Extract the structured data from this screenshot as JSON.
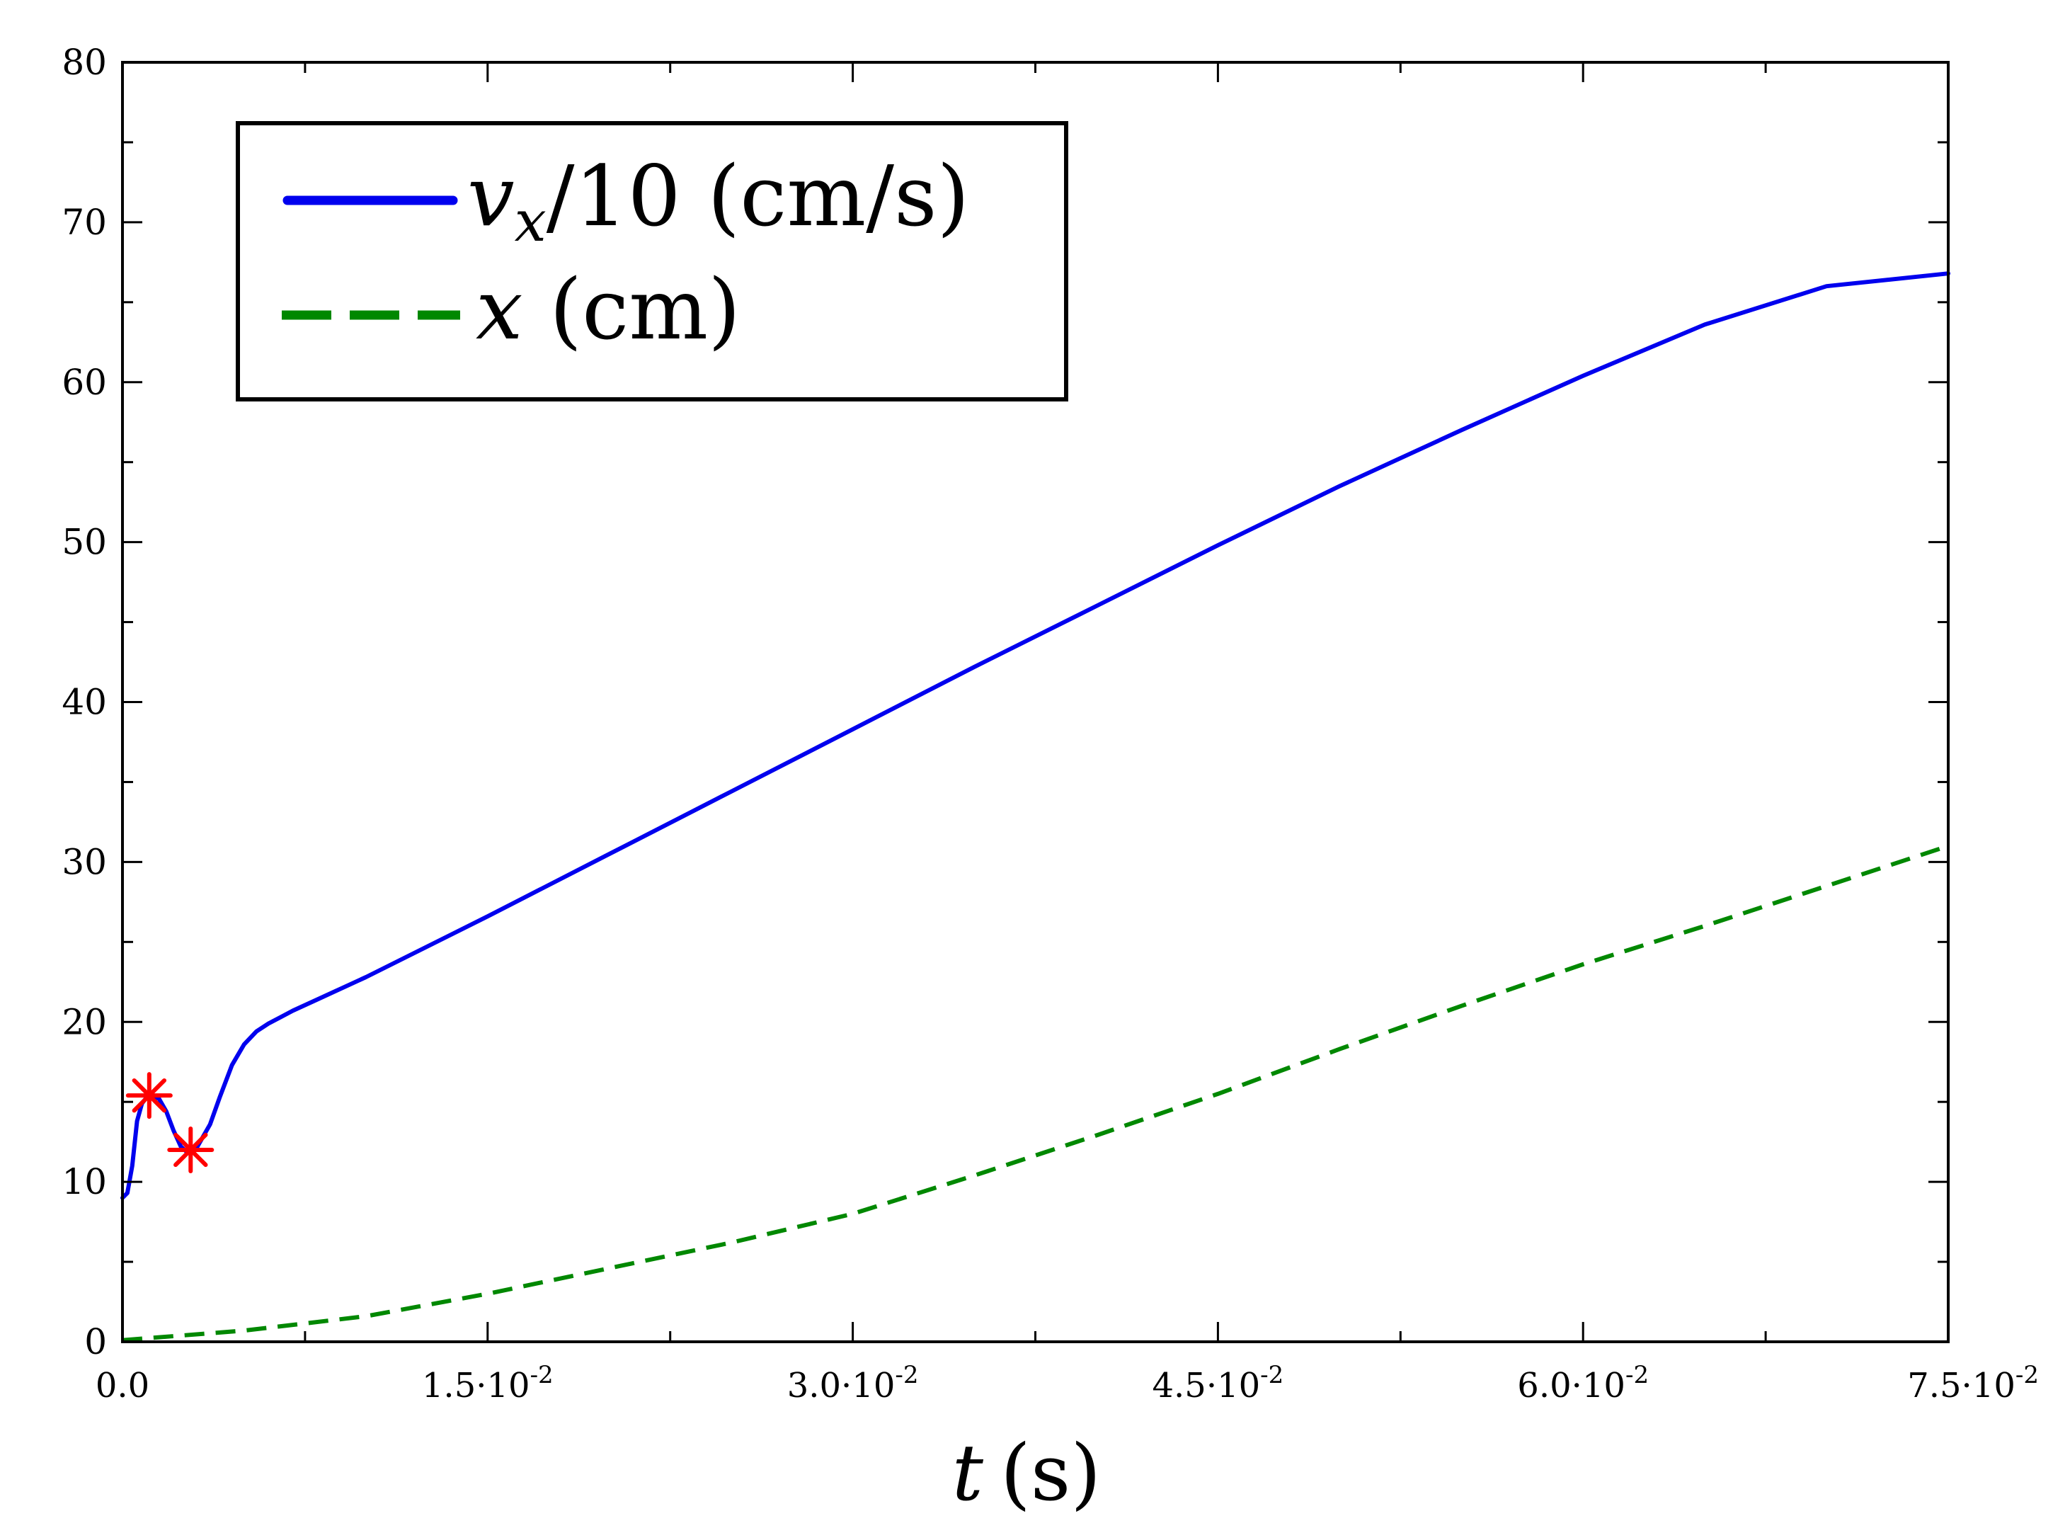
{
  "chart_data": {
    "type": "line",
    "title": "",
    "xlabel": "t (s)",
    "xlabel_var": "t",
    "xlabel_unit": "(s)",
    "ylabel": "",
    "xlim": [
      0,
      0.075
    ],
    "ylim": [
      0,
      80
    ],
    "x_ticks": [
      {
        "value": 0.0,
        "mant": "0.0",
        "exp": ""
      },
      {
        "value": 0.015,
        "mant": "1.5",
        "exp": "-2"
      },
      {
        "value": 0.03,
        "mant": "3.0",
        "exp": "-2"
      },
      {
        "value": 0.045,
        "mant": "4.5",
        "exp": "-2"
      },
      {
        "value": 0.06,
        "mant": "6.0",
        "exp": "-2"
      },
      {
        "value": 0.075,
        "mant": "7.5",
        "exp": "-2"
      }
    ],
    "x_minor_ticks": [
      0.0075,
      0.0225,
      0.0375,
      0.0525,
      0.0675
    ],
    "y_ticks": [
      0,
      10,
      20,
      30,
      40,
      50,
      60,
      70,
      80
    ],
    "y_minor_ticks": [
      5,
      15,
      25,
      35,
      45,
      55,
      65,
      75
    ],
    "grid": false,
    "legend_position": "top-left",
    "series": [
      {
        "name": "v_x/10 (cm/s)",
        "legend_var": "v",
        "legend_sub": "x",
        "legend_rest": "/10 (cm/s)",
        "style": "solid",
        "color": "#0000ee",
        "x": [
          0.0,
          0.0002,
          0.0004,
          0.0006,
          0.0008,
          0.001,
          0.0012,
          0.0015,
          0.0018,
          0.0021,
          0.0024,
          0.0027,
          0.003,
          0.0033,
          0.0036,
          0.004,
          0.0045,
          0.005,
          0.0055,
          0.006,
          0.0065,
          0.007,
          0.008,
          0.009,
          0.01,
          0.015,
          0.02,
          0.025,
          0.03,
          0.035,
          0.04,
          0.045,
          0.05,
          0.055,
          0.06,
          0.065,
          0.07,
          0.075
        ],
        "y": [
          9.0,
          9.3,
          11.0,
          13.8,
          14.9,
          15.3,
          15.4,
          15.2,
          14.4,
          13.2,
          12.2,
          11.8,
          12.0,
          12.8,
          13.6,
          15.3,
          17.3,
          18.6,
          19.4,
          19.9,
          20.3,
          20.7,
          21.4,
          22.1,
          22.8,
          26.6,
          30.5,
          34.4,
          38.3,
          42.2,
          46.0,
          49.8,
          53.5,
          57.0,
          60.4,
          63.6,
          66.0,
          66.8
        ]
      },
      {
        "name": "x (cm)",
        "legend_var": "x",
        "legend_sub": "",
        "legend_rest": " (cm)",
        "style": "dashed",
        "color": "#008800",
        "x": [
          0.0,
          0.005,
          0.01,
          0.015,
          0.02,
          0.025,
          0.03,
          0.035,
          0.04,
          0.045,
          0.05,
          0.055,
          0.06,
          0.065,
          0.07,
          0.075
        ],
        "y": [
          0.1,
          0.7,
          1.6,
          3.0,
          4.6,
          6.2,
          8.0,
          10.4,
          12.9,
          15.5,
          18.3,
          21.0,
          23.6,
          26.0,
          28.5,
          31.0
        ]
      }
    ],
    "markers": {
      "name": "extrema",
      "color": "#ff0000",
      "shape": "asterisk",
      "points": [
        {
          "x": 0.0011,
          "y": 15.4
        },
        {
          "x": 0.0028,
          "y": 12.0
        }
      ]
    }
  }
}
